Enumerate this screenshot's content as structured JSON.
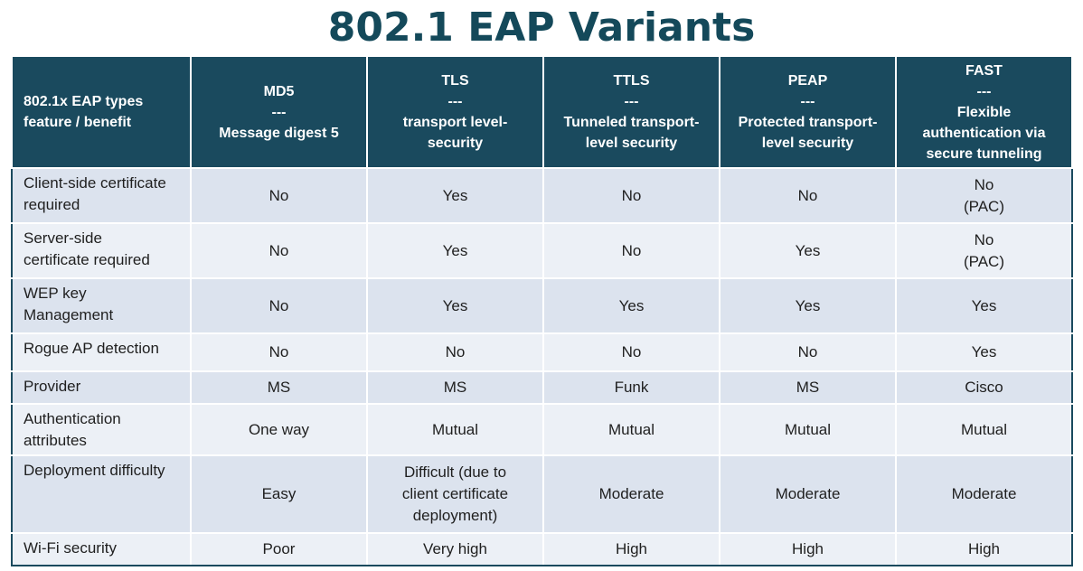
{
  "title": "802.1 EAP Variants",
  "table": {
    "header": {
      "feature": [
        "802.1x EAP types",
        "feature / benefit"
      ],
      "columns": [
        [
          "MD5",
          "---",
          "Message digest 5"
        ],
        [
          "TLS",
          "---",
          "transport level-",
          "security"
        ],
        [
          "TTLS",
          "---",
          "Tunneled transport-",
          "level security"
        ],
        [
          "PEAP",
          "---",
          "Protected transport-",
          "level security"
        ],
        [
          "FAST",
          "---",
          "Flexible",
          "authentication via",
          "secure tunneling"
        ]
      ]
    },
    "rows": [
      {
        "feature": [
          "Client-side certificate",
          "required"
        ],
        "cells": [
          [
            "No"
          ],
          [
            "Yes"
          ],
          [
            "No"
          ],
          [
            "No"
          ],
          [
            "No",
            "(PAC)"
          ]
        ]
      },
      {
        "feature": [
          "Server-side",
          "certificate required"
        ],
        "cells": [
          [
            "No"
          ],
          [
            "Yes"
          ],
          [
            "No"
          ],
          [
            "Yes"
          ],
          [
            "No",
            "(PAC)"
          ]
        ]
      },
      {
        "feature": [
          "WEP key",
          "Management"
        ],
        "cells": [
          [
            "No"
          ],
          [
            "Yes"
          ],
          [
            "Yes"
          ],
          [
            "Yes"
          ],
          [
            "Yes"
          ]
        ]
      },
      {
        "feature": [
          "Rogue AP detection"
        ],
        "cells": [
          [
            "No"
          ],
          [
            "No"
          ],
          [
            "No"
          ],
          [
            "No"
          ],
          [
            "Yes"
          ]
        ]
      },
      {
        "feature": [
          "Provider"
        ],
        "cells": [
          [
            "MS"
          ],
          [
            "MS"
          ],
          [
            "Funk"
          ],
          [
            "MS"
          ],
          [
            "Cisco"
          ]
        ]
      },
      {
        "feature": [
          "Authentication",
          "attributes"
        ],
        "cells": [
          [
            "One way"
          ],
          [
            "Mutual"
          ],
          [
            "Mutual"
          ],
          [
            "Mutual"
          ],
          [
            "Mutual"
          ]
        ]
      },
      {
        "feature": [
          "Deployment difficulty"
        ],
        "cells": [
          [
            "Easy"
          ],
          [
            "Difficult (due to",
            "client certificate",
            "deployment)"
          ],
          [
            "Moderate"
          ],
          [
            "Moderate"
          ],
          [
            "Moderate"
          ]
        ]
      },
      {
        "feature": [
          "Wi-Fi security"
        ],
        "cells": [
          [
            "Poor"
          ],
          [
            "Very high"
          ],
          [
            "High"
          ],
          [
            "High"
          ],
          [
            "High"
          ]
        ]
      }
    ]
  },
  "colors": {
    "title": "#14495a",
    "header_bg": "#1a4a5e",
    "row_odd": "#dce3ee",
    "row_even": "#ecf0f6"
  }
}
